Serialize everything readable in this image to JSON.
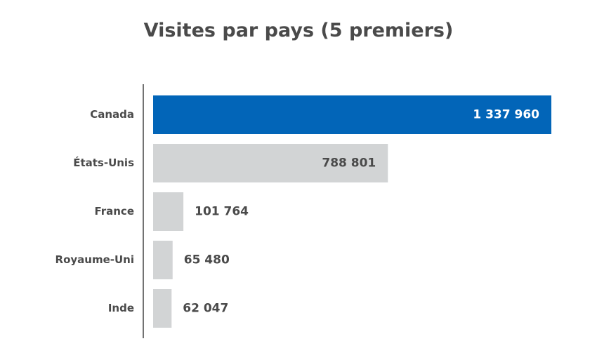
{
  "chart_data": {
    "type": "bar",
    "orientation": "horizontal",
    "title": "Visites par pays (5 premiers)",
    "categories": [
      "Canada",
      "États-Unis",
      "France",
      "Royaume-Uni",
      "Inde"
    ],
    "values": [
      1337960,
      788801,
      101764,
      65480,
      62047
    ],
    "value_labels": [
      "1 337 960",
      "788 801",
      "101 764",
      "65 480",
      "62 047"
    ],
    "xlim": [
      0,
      1337960
    ],
    "grid": false,
    "legend": "none",
    "highlight_index": 0,
    "colors": {
      "highlight": "#0265b8",
      "default": "#d2d4d5",
      "label_on_highlight": "#ffffff",
      "label_default": "#4a4a4a",
      "axis": "#444444"
    }
  }
}
